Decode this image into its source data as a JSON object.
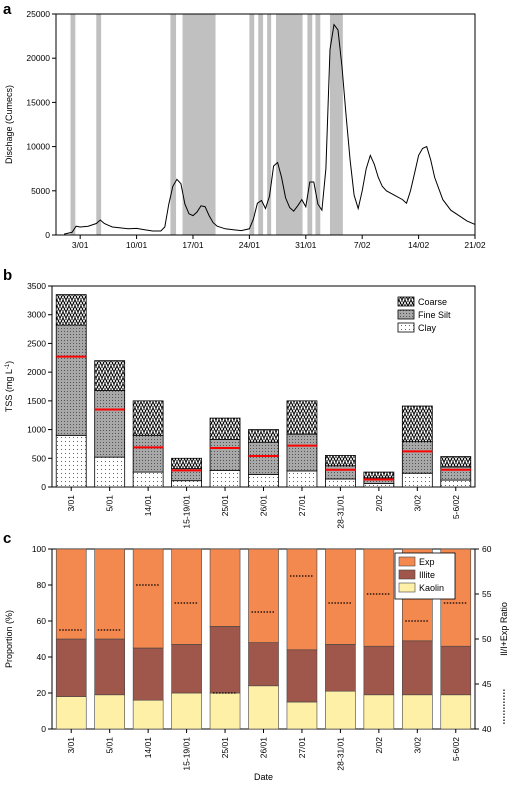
{
  "chart_data": [
    {
      "panel": "a",
      "type": "line",
      "ylabel": "Dischage (Cumecs)",
      "xlabel": "",
      "ylim": [
        0,
        25000
      ],
      "yticks": [
        0,
        5000,
        10000,
        15000,
        20000,
        25000
      ],
      "xlim_day": [
        0,
        52
      ],
      "xtick_labels": [
        "3/01",
        "10/01",
        "17/01",
        "24/01",
        "31/01",
        "7/02",
        "14/02",
        "21/02"
      ],
      "xtick_days": [
        3,
        10,
        17,
        24,
        31,
        38,
        45,
        52
      ],
      "colors": {
        "line": "#000000",
        "shade": "#c0c0c0"
      },
      "shaded_periods_day": [
        [
          1.8,
          2.4
        ],
        [
          5.0,
          5.6
        ],
        [
          14.2,
          14.9
        ],
        [
          15.7,
          19.8
        ],
        [
          24.0,
          24.6
        ],
        [
          25.1,
          25.7
        ],
        [
          26.2,
          26.7
        ],
        [
          27.3,
          30.6
        ],
        [
          31.2,
          31.8
        ],
        [
          32.2,
          32.8
        ],
        [
          34.0,
          35.6
        ]
      ],
      "series": [
        {
          "day": [
            1.0,
            2.0,
            2.5,
            3.0,
            4.0,
            5.0,
            5.5,
            6.0,
            6.5,
            7.0,
            8.0,
            9.0,
            10.0,
            11.0,
            12.0,
            13.0,
            13.5,
            14.0,
            14.5,
            15.0,
            15.5,
            16.0,
            16.5,
            17.0,
            17.5,
            18.0,
            18.5,
            19.0,
            19.5,
            20.0,
            21.0,
            22.0,
            23.0,
            24.0,
            24.5,
            25.0,
            25.5,
            26.0,
            26.5,
            27.0,
            27.5,
            28.0,
            28.5,
            29.0,
            29.5,
            30.0,
            30.5,
            31.0,
            31.5,
            32.0,
            32.5,
            33.0,
            33.5,
            34.0,
            34.5,
            35.0,
            35.5,
            36.0,
            36.5,
            37.0,
            37.5,
            38.0,
            38.5,
            39.0,
            39.5,
            40.0,
            40.5,
            41.0,
            42.0,
            43.0,
            43.5,
            44.0,
            44.5,
            45.0,
            45.5,
            46.0,
            46.5,
            47.0,
            48.0,
            49.0,
            50.0,
            51.0,
            52.0
          ],
          "values": [
            100,
            300,
            1000,
            900,
            1000,
            1300,
            1700,
            1300,
            1100,
            900,
            800,
            700,
            750,
            600,
            450,
            450,
            900,
            3500,
            5500,
            6300,
            5800,
            3500,
            2400,
            2200,
            2600,
            3300,
            3200,
            2200,
            1400,
            1000,
            700,
            600,
            500,
            700,
            1800,
            3600,
            3900,
            3000,
            4400,
            7800,
            8200,
            6500,
            4200,
            3100,
            2700,
            3300,
            4000,
            3200,
            6000,
            6000,
            3500,
            2800,
            7500,
            21000,
            23800,
            23200,
            19000,
            13500,
            8500,
            4500,
            3000,
            5000,
            7500,
            9000,
            8000,
            6500,
            5500,
            5000,
            4500,
            4000,
            3600,
            5000,
            7000,
            9000,
            9800,
            10000,
            8500,
            6500,
            4000,
            2800,
            2200,
            1600,
            1200,
            900
          ]
        }
      ]
    },
    {
      "panel": "b",
      "type": "bar",
      "stacked": true,
      "ylabel": "TSS (mg L",
      "ylabel_sup": "-1",
      "ylabel_tail": ")",
      "xlabel": "",
      "ylim": [
        0,
        3500
      ],
      "yticks": [
        0,
        500,
        1000,
        1500,
        2000,
        2500,
        3000,
        3500
      ],
      "categories": [
        "3/01",
        "5/01",
        "14/01",
        "15-19/01",
        "25/01",
        "26/01",
        "27/01",
        "28-31/01",
        "2/02",
        "3/02",
        "5-6/02"
      ],
      "series": [
        {
          "name": "Clay",
          "values": [
            900,
            520,
            260,
            110,
            290,
            220,
            280,
            140,
            60,
            240,
            120
          ]
        },
        {
          "name": "Fine Silt",
          "values": [
            1920,
            1160,
            640,
            210,
            540,
            560,
            640,
            230,
            100,
            550,
            230
          ]
        },
        {
          "name": "Coarse",
          "values": [
            530,
            520,
            600,
            180,
            370,
            220,
            580,
            180,
            100,
            620,
            180
          ]
        }
      ],
      "red_marks": [
        2270,
        1350,
        690,
        290,
        680,
        540,
        720,
        300,
        130,
        620,
        300
      ],
      "legend": [
        "Coarse",
        "Fine Silt",
        "Clay"
      ],
      "legend_position": "top-right",
      "colors": {
        "red_mark": "#ff0000",
        "clay_fill": "#ffffff",
        "silt_fill": "#a8a8a8",
        "coarse_fill": "#ffffff"
      }
    },
    {
      "panel": "c",
      "type": "bar",
      "stacked": true,
      "ylabel": "Proportion (%)",
      "y2label": "Il/I+Exp Ratio",
      "xlabel": "Date",
      "ylim": [
        0,
        100
      ],
      "yticks": [
        0,
        20,
        40,
        60,
        80,
        100
      ],
      "y2lim": [
        40,
        60
      ],
      "y2ticks": [
        40,
        45,
        50,
        55,
        60
      ],
      "categories": [
        "3/01",
        "5/01",
        "14/01",
        "15-19/01",
        "25/01",
        "26/01",
        "27/01",
        "28-31/01",
        "2/02",
        "3/02",
        "5-6/02"
      ],
      "series": [
        {
          "name": "Kaolin",
          "values": [
            18,
            19,
            16,
            20,
            20,
            24,
            15,
            21,
            19,
            19,
            19
          ]
        },
        {
          "name": "Illite",
          "values": [
            32,
            31,
            29,
            27,
            37,
            24,
            29,
            26,
            27,
            30,
            27
          ]
        },
        {
          "name": "Exp",
          "values": [
            50,
            50,
            55,
            53,
            43,
            52,
            56,
            53,
            54,
            51,
            54
          ]
        }
      ],
      "ratio_values": [
        51,
        51,
        56,
        54,
        44,
        53,
        57,
        54,
        55,
        52,
        54
      ],
      "legend": [
        "Exp",
        "Illite",
        "Kaolin"
      ],
      "legend_position": "top-right",
      "colors": {
        "Exp": "#f4894f",
        "Illite": "#a0574b",
        "Kaolin": "#fff0a8"
      }
    }
  ]
}
